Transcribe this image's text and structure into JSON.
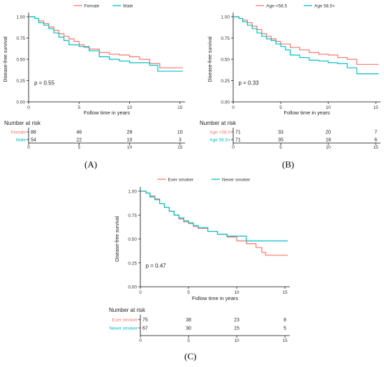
{
  "colors": {
    "red": "#F8766D",
    "teal": "#00BFC4",
    "axis": "#000000",
    "text": "#222222"
  },
  "chart_data": [
    {
      "panel_label": "(A)",
      "type": "line",
      "step": true,
      "ylabel": "Disease-free survival",
      "xlabel": "Follow time in years",
      "xlim": [
        0,
        15.5
      ],
      "ylim": [
        0,
        1.0
      ],
      "xticks": [
        "0",
        "5",
        "10",
        "15"
      ],
      "yticks": [
        "0.00",
        "0.25",
        "0.50",
        "0.75",
        "1.00"
      ],
      "pvalue": "p = 0.55",
      "legend_position": "top",
      "series": [
        {
          "name": "Female",
          "color": "#F8766D",
          "x": [
            0,
            0.6,
            1,
            1.5,
            2,
            2.5,
            3,
            3.5,
            4,
            4.5,
            5,
            5.5,
            6,
            7,
            8,
            9,
            10,
            11,
            12,
            13,
            15.3
          ],
          "y": [
            1.0,
            0.98,
            0.95,
            0.92,
            0.88,
            0.84,
            0.8,
            0.77,
            0.74,
            0.71,
            0.67,
            0.64,
            0.62,
            0.58,
            0.56,
            0.55,
            0.53,
            0.5,
            0.45,
            0.4,
            0.4
          ]
        },
        {
          "name": "Male",
          "color": "#00BFC4",
          "x": [
            0,
            0.6,
            1,
            1.5,
            2,
            2.5,
            3,
            3.5,
            4,
            5,
            6,
            7,
            8,
            9,
            10,
            11,
            12,
            12.8,
            15.3
          ],
          "y": [
            1.0,
            0.98,
            0.93,
            0.9,
            0.86,
            0.81,
            0.76,
            0.72,
            0.67,
            0.65,
            0.6,
            0.53,
            0.5,
            0.48,
            0.46,
            0.46,
            0.43,
            0.36,
            0.36
          ]
        }
      ],
      "risk_table": {
        "title": "Number at risk",
        "x": [
          0,
          5,
          10,
          15
        ],
        "xticks": [
          "0",
          "5",
          "10",
          "15"
        ],
        "rows": [
          {
            "label": "Female",
            "color": "#F8766D",
            "values": [
              "88",
              "46",
              "28",
              "10"
            ]
          },
          {
            "label": "Male",
            "color": "#00BFC4",
            "values": [
              "54",
              "22",
              "10",
              "3"
            ]
          }
        ]
      }
    },
    {
      "panel_label": "(B)",
      "type": "line",
      "step": true,
      "ylabel": "Disease-free survival",
      "xlabel": "Follow time in years",
      "xlim": [
        0,
        15.5
      ],
      "ylim": [
        0,
        1.0
      ],
      "xticks": [
        "0",
        "5",
        "10",
        "15"
      ],
      "yticks": [
        "0.00",
        "0.25",
        "0.50",
        "0.75",
        "1.00"
      ],
      "pvalue": "p = 0.33",
      "legend_position": "top",
      "series": [
        {
          "name": "Age <58.5",
          "color": "#F8766D",
          "x": [
            0,
            0.6,
            1,
            1.5,
            2,
            2.5,
            3,
            3.5,
            4,
            4.5,
            5,
            6,
            7,
            8,
            9,
            10,
            11,
            12,
            13,
            15.3
          ],
          "y": [
            1.0,
            0.98,
            0.96,
            0.93,
            0.89,
            0.85,
            0.8,
            0.77,
            0.74,
            0.71,
            0.68,
            0.64,
            0.61,
            0.58,
            0.56,
            0.55,
            0.52,
            0.5,
            0.44,
            0.44
          ]
        },
        {
          "name": "Age 58.5+",
          "color": "#00BFC4",
          "x": [
            0,
            0.6,
            1,
            1.5,
            2,
            2.5,
            3,
            3.5,
            4,
            4.5,
            5,
            5.5,
            6,
            7,
            8,
            9,
            10,
            11,
            12,
            13,
            15.3
          ],
          "y": [
            1.0,
            0.98,
            0.94,
            0.9,
            0.86,
            0.81,
            0.77,
            0.74,
            0.72,
            0.68,
            0.65,
            0.61,
            0.55,
            0.52,
            0.49,
            0.48,
            0.46,
            0.45,
            0.4,
            0.33,
            0.33
          ]
        }
      ],
      "risk_table": {
        "title": "Number at risk",
        "x": [
          0,
          5,
          10,
          15
        ],
        "xticks": [
          "0",
          "5",
          "10",
          "15"
        ],
        "rows": [
          {
            "label": "Age <58.5",
            "color": "#F8766D",
            "values": [
              "71",
              "33",
              "20",
              "7"
            ]
          },
          {
            "label": "Age 58.5+",
            "color": "#00BFC4",
            "values": [
              "71",
              "35",
              "18",
              "6"
            ]
          }
        ]
      }
    },
    {
      "panel_label": "(C)",
      "type": "line",
      "step": true,
      "ylabel": "Disease-free survival",
      "xlabel": "Follow time in years",
      "xlim": [
        0,
        15.5
      ],
      "ylim": [
        0,
        1.0
      ],
      "xticks": [
        "0",
        "5",
        "10",
        "15"
      ],
      "yticks": [
        "0.00",
        "0.25",
        "0.50",
        "0.75",
        "1.00"
      ],
      "pvalue": "p = 0.47",
      "legend_position": "top",
      "series": [
        {
          "name": "Ever smoker",
          "color": "#F8766D",
          "x": [
            0,
            0.6,
            1,
            1.5,
            2,
            2.5,
            3,
            3.5,
            4,
            4.5,
            5,
            5.5,
            6,
            7,
            8,
            9,
            10,
            11,
            12,
            12.6,
            13,
            15.3
          ],
          "y": [
            1.0,
            0.98,
            0.95,
            0.92,
            0.87,
            0.83,
            0.79,
            0.75,
            0.71,
            0.68,
            0.66,
            0.63,
            0.61,
            0.58,
            0.55,
            0.52,
            0.48,
            0.45,
            0.41,
            0.36,
            0.33,
            0.33
          ]
        },
        {
          "name": "Never smoker",
          "color": "#00BFC4",
          "x": [
            0,
            0.6,
            1,
            1.5,
            2,
            2.5,
            3,
            3.5,
            4,
            4.5,
            5,
            5.5,
            6,
            7,
            8,
            9,
            10,
            11,
            15.3
          ],
          "y": [
            1.0,
            0.98,
            0.94,
            0.91,
            0.87,
            0.83,
            0.79,
            0.75,
            0.72,
            0.69,
            0.67,
            0.64,
            0.62,
            0.58,
            0.55,
            0.53,
            0.53,
            0.48,
            0.48
          ]
        }
      ],
      "risk_table": {
        "title": "Number at risk",
        "x": [
          0,
          5,
          10,
          15
        ],
        "xticks": [
          "0",
          "5",
          "10",
          "15"
        ],
        "rows": [
          {
            "label": "Ever smoker",
            "color": "#F8766D",
            "values": [
              "75",
              "38",
              "23",
              "8"
            ]
          },
          {
            "label": "Never smoker",
            "color": "#00BFC4",
            "values": [
              "67",
              "30",
              "15",
              "5"
            ]
          }
        ]
      }
    }
  ]
}
